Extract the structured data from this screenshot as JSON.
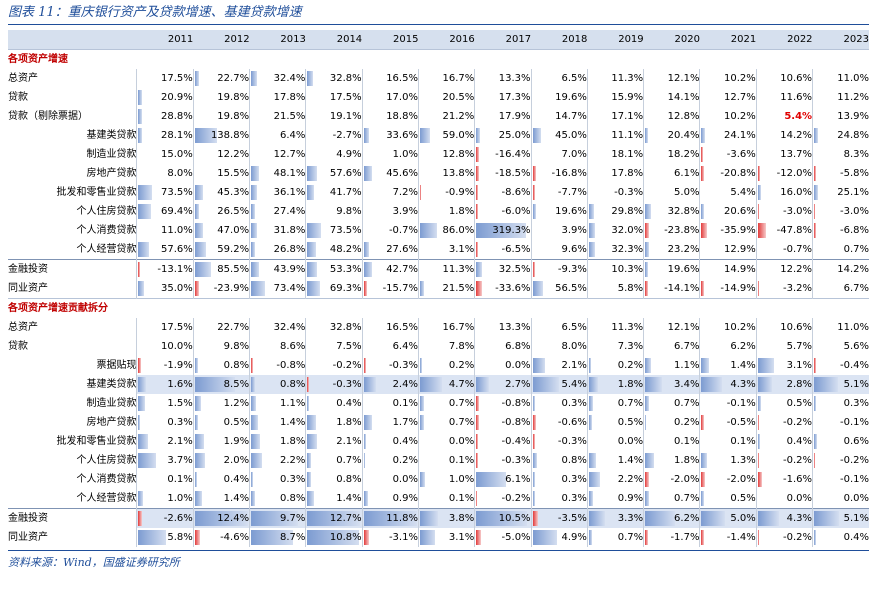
{
  "title": "图表 11：重庆银行资产及贷款增速、基建贷款增速",
  "source": "资料来源：Wind，国盛证券研究所",
  "years": [
    "2011",
    "2012",
    "2013",
    "2014",
    "2015",
    "2016",
    "2017",
    "2018",
    "2019",
    "2020",
    "2021",
    "2022",
    "2023"
  ],
  "sections": [
    {
      "heading": "各项资产增速",
      "rows": [
        {
          "label": "总资产",
          "indent": false,
          "band": false,
          "sep": false,
          "values": [
            "17.5%",
            "22.7%",
            "32.4%",
            "32.8%",
            "16.5%",
            "16.7%",
            "13.3%",
            "6.5%",
            "11.3%",
            "12.1%",
            "10.2%",
            "10.6%",
            "11.0%"
          ],
          "bars": [
            0,
            4,
            6,
            6,
            0,
            0,
            0,
            0,
            0,
            0,
            0,
            0,
            0
          ]
        },
        {
          "label": "贷款",
          "indent": false,
          "band": false,
          "sep": false,
          "values": [
            "20.9%",
            "19.8%",
            "17.8%",
            "17.5%",
            "17.0%",
            "20.5%",
            "17.3%",
            "19.6%",
            "15.9%",
            "14.1%",
            "12.7%",
            "11.6%",
            "11.2%"
          ],
          "bars": [
            4,
            0,
            0,
            0,
            0,
            0,
            0,
            0,
            0,
            0,
            0,
            0,
            0
          ],
          "red": []
        },
        {
          "label": "贷款（剔除票据）",
          "indent": false,
          "band": false,
          "sep": false,
          "values": [
            "28.8%",
            "19.8%",
            "21.5%",
            "19.1%",
            "18.8%",
            "21.2%",
            "17.9%",
            "14.7%",
            "17.1%",
            "12.8%",
            "10.2%",
            "5.4%",
            "13.9%"
          ],
          "bars": [
            4,
            0,
            0,
            0,
            0,
            0,
            0,
            0,
            0,
            0,
            0,
            0,
            0
          ],
          "red": [
            11
          ],
          "highlight": [
            11
          ]
        },
        {
          "label": "基建类贷款",
          "indent": true,
          "band": false,
          "sep": false,
          "values": [
            "28.1%",
            "138.8%",
            "6.4%",
            "-2.7%",
            "33.6%",
            "59.0%",
            "25.0%",
            "45.0%",
            "11.1%",
            "20.4%",
            "24.1%",
            "14.2%",
            "24.8%"
          ],
          "bars": [
            4,
            22,
            0,
            0,
            5,
            10,
            4,
            8,
            0,
            3,
            4,
            0,
            4
          ]
        },
        {
          "label": "制造业贷款",
          "indent": true,
          "band": false,
          "sep": false,
          "values": [
            "15.0%",
            "12.2%",
            "12.7%",
            "4.9%",
            "1.0%",
            "12.8%",
            "-16.4%",
            "7.0%",
            "18.1%",
            "18.2%",
            "-3.6%",
            "13.7%",
            "8.3%"
          ],
          "bars": [
            0,
            0,
            0,
            0,
            0,
            0,
            -3,
            0,
            0,
            0,
            -2,
            0,
            0
          ]
        },
        {
          "label": "房地产贷款",
          "indent": true,
          "band": false,
          "sep": false,
          "values": [
            "8.0%",
            "15.5%",
            "48.1%",
            "57.6%",
            "45.6%",
            "13.8%",
            "-18.5%",
            "-16.8%",
            "17.8%",
            "6.1%",
            "-20.8%",
            "-12.0%",
            "-5.8%"
          ],
          "bars": [
            0,
            0,
            8,
            10,
            8,
            0,
            -3,
            -3,
            0,
            0,
            -3,
            -2,
            -2
          ]
        },
        {
          "label": "批发和零售业贷款",
          "indent": true,
          "band": false,
          "sep": false,
          "values": [
            "73.5%",
            "45.3%",
            "36.1%",
            "41.7%",
            "7.2%",
            "-0.9%",
            "-8.6%",
            "-7.7%",
            "-0.3%",
            "5.0%",
            "5.4%",
            "16.0%",
            "25.1%"
          ],
          "bars": [
            14,
            8,
            6,
            7,
            0,
            -1,
            -2,
            -2,
            0,
            0,
            0,
            3,
            4
          ]
        },
        {
          "label": "个人住房贷款",
          "indent": true,
          "band": false,
          "sep": false,
          "values": [
            "69.4%",
            "26.5%",
            "27.4%",
            "9.8%",
            "3.9%",
            "1.8%",
            "-6.0%",
            "19.6%",
            "29.8%",
            "32.8%",
            "20.6%",
            "-3.0%",
            "-3.0%"
          ],
          "bars": [
            13,
            4,
            4,
            0,
            0,
            0,
            -2,
            3,
            5,
            6,
            3,
            -1,
            -1
          ]
        },
        {
          "label": "个人消费贷款",
          "indent": true,
          "band": false,
          "sep": false,
          "values": [
            "11.0%",
            "47.0%",
            "31.8%",
            "73.5%",
            "-0.7%",
            "86.0%",
            "319.3%",
            "3.9%",
            "32.0%",
            "-23.8%",
            "-35.9%",
            "-47.8%",
            "-6.8%"
          ],
          "bars": [
            0,
            8,
            6,
            14,
            0,
            17,
            50,
            0,
            6,
            -4,
            -6,
            -8,
            -2
          ]
        },
        {
          "label": "个人经营贷款",
          "indent": true,
          "band": false,
          "sep": false,
          "values": [
            "57.6%",
            "59.2%",
            "26.8%",
            "48.2%",
            "27.6%",
            "3.1%",
            "-6.5%",
            "9.6%",
            "32.3%",
            "23.2%",
            "12.9%",
            "-0.7%",
            "0.7%"
          ],
          "bars": [
            11,
            11,
            4,
            9,
            5,
            0,
            -2,
            0,
            6,
            4,
            0,
            0,
            0
          ]
        },
        {
          "label": "金融投资",
          "indent": false,
          "band": false,
          "sep": true,
          "values": [
            "-13.1%",
            "85.5%",
            "43.9%",
            "53.3%",
            "42.7%",
            "11.3%",
            "32.5%",
            "-9.3%",
            "10.3%",
            "19.6%",
            "14.9%",
            "12.2%",
            "14.2%"
          ],
          "bars": [
            -2,
            16,
            8,
            10,
            8,
            0,
            6,
            -2,
            0,
            3,
            0,
            0,
            0
          ]
        },
        {
          "label": "同业资产",
          "indent": false,
          "band": false,
          "sep": false,
          "values": [
            "35.0%",
            "-23.9%",
            "73.4%",
            "69.3%",
            "-15.7%",
            "21.5%",
            "-33.6%",
            "56.5%",
            "5.8%",
            "-14.1%",
            "-14.9%",
            "-3.2%",
            "6.7%"
          ],
          "bars": [
            6,
            -4,
            14,
            13,
            -3,
            4,
            -6,
            10,
            0,
            -3,
            -3,
            -1,
            0
          ]
        }
      ]
    },
    {
      "heading": "各项资产增速贡献拆分",
      "rows": [
        {
          "label": "总资产",
          "indent": false,
          "band": false,
          "sep": false,
          "values": [
            "17.5%",
            "22.7%",
            "32.4%",
            "32.8%",
            "16.5%",
            "16.7%",
            "13.3%",
            "6.5%",
            "11.3%",
            "12.1%",
            "10.2%",
            "10.6%",
            "11.0%"
          ],
          "bars": [
            0,
            0,
            0,
            0,
            0,
            0,
            0,
            0,
            0,
            0,
            0,
            0,
            0
          ]
        },
        {
          "label": "贷款",
          "indent": false,
          "band": false,
          "sep": false,
          "values": [
            "10.0%",
            "9.8%",
            "8.6%",
            "7.5%",
            "6.4%",
            "7.8%",
            "6.8%",
            "8.0%",
            "7.3%",
            "6.7%",
            "6.2%",
            "5.7%",
            "5.6%"
          ],
          "bars": [
            0,
            0,
            0,
            0,
            0,
            0,
            0,
            0,
            0,
            0,
            0,
            0,
            0
          ]
        },
        {
          "label": "票据贴现",
          "indent": true,
          "band": false,
          "sep": false,
          "values": [
            "-1.9%",
            "0.8%",
            "-0.8%",
            "-0.2%",
            "-0.3%",
            "0.2%",
            "0.0%",
            "2.1%",
            "0.2%",
            "1.1%",
            "1.4%",
            "3.1%",
            "-0.4%"
          ],
          "bars": [
            -3,
            3,
            -2,
            0,
            -2,
            2,
            0,
            12,
            2,
            6,
            8,
            16,
            -2
          ]
        },
        {
          "label": "基建类贷款",
          "indent": true,
          "band": true,
          "sep": false,
          "values": [
            "1.6%",
            "8.5%",
            "0.8%",
            "-0.3%",
            "2.4%",
            "4.7%",
            "2.7%",
            "5.4%",
            "1.8%",
            "3.4%",
            "4.3%",
            "2.8%",
            "5.1%"
          ],
          "bars": [
            8,
            40,
            4,
            -2,
            12,
            22,
            13,
            26,
            9,
            17,
            21,
            14,
            24
          ]
        },
        {
          "label": "制造业贷款",
          "indent": true,
          "band": false,
          "sep": false,
          "values": [
            "1.5%",
            "1.2%",
            "1.1%",
            "0.4%",
            "0.1%",
            "0.7%",
            "-0.8%",
            "0.3%",
            "0.7%",
            "0.7%",
            "-0.1%",
            "0.5%",
            "0.3%"
          ],
          "bars": [
            7,
            6,
            5,
            2,
            0,
            4,
            -3,
            2,
            4,
            4,
            0,
            3,
            2
          ]
        },
        {
          "label": "房地产贷款",
          "indent": true,
          "band": false,
          "sep": false,
          "values": [
            "0.3%",
            "0.5%",
            "1.4%",
            "1.8%",
            "1.7%",
            "0.7%",
            "-0.8%",
            "-0.6%",
            "0.5%",
            "0.2%",
            "-0.5%",
            "-0.2%",
            "-0.1%"
          ],
          "bars": [
            2,
            3,
            7,
            9,
            8,
            4,
            -3,
            -3,
            3,
            1,
            -3,
            -1,
            0
          ]
        },
        {
          "label": "批发和零售业贷款",
          "indent": true,
          "band": false,
          "sep": false,
          "values": [
            "2.1%",
            "1.9%",
            "1.8%",
            "2.1%",
            "0.4%",
            "0.0%",
            "-0.4%",
            "-0.3%",
            "0.0%",
            "0.1%",
            "0.1%",
            "0.4%",
            "0.6%"
          ],
          "bars": [
            10,
            9,
            9,
            10,
            2,
            0,
            -2,
            -2,
            0,
            0,
            0,
            2,
            3
          ]
        },
        {
          "label": "个人住房贷款",
          "indent": true,
          "band": false,
          "sep": false,
          "values": [
            "3.7%",
            "2.0%",
            "2.2%",
            "0.7%",
            "0.2%",
            "0.1%",
            "-0.3%",
            "0.8%",
            "1.4%",
            "1.8%",
            "1.3%",
            "-0.2%",
            "-0.2%"
          ],
          "bars": [
            18,
            10,
            11,
            4,
            1,
            0,
            -2,
            4,
            7,
            9,
            6,
            -1,
            -1
          ]
        },
        {
          "label": "个人消费贷款",
          "indent": true,
          "band": false,
          "sep": false,
          "values": [
            "0.1%",
            "0.4%",
            "0.3%",
            "0.8%",
            "0.0%",
            "1.0%",
            "6.1%",
            "0.3%",
            "2.2%",
            "-2.0%",
            "-2.0%",
            "-1.6%",
            "-0.1%"
          ],
          "bars": [
            0,
            2,
            2,
            4,
            0,
            5,
            30,
            2,
            11,
            -4,
            -4,
            -4,
            0
          ]
        },
        {
          "label": "个人经营贷款",
          "indent": true,
          "band": false,
          "sep": false,
          "values": [
            "1.0%",
            "1.4%",
            "0.8%",
            "1.4%",
            "0.9%",
            "0.1%",
            "-0.2%",
            "0.3%",
            "0.9%",
            "0.7%",
            "0.5%",
            "0.0%",
            "0.0%"
          ],
          "bars": [
            5,
            7,
            4,
            7,
            4,
            0,
            -1,
            2,
            4,
            4,
            3,
            0,
            0
          ]
        },
        {
          "label": "金融投资",
          "indent": false,
          "band": true,
          "sep": true,
          "values": [
            "-2.6%",
            "12.4%",
            "9.7%",
            "12.7%",
            "11.8%",
            "3.8%",
            "10.5%",
            "-3.5%",
            "3.3%",
            "6.2%",
            "5.0%",
            "4.3%",
            "5.1%"
          ],
          "bars": [
            -4,
            60,
            47,
            62,
            57,
            18,
            51,
            -5,
            16,
            30,
            24,
            21,
            25
          ]
        },
        {
          "label": "同业资产",
          "indent": false,
          "band": false,
          "sep": false,
          "values": [
            "5.8%",
            "-4.6%",
            "8.7%",
            "10.8%",
            "-3.1%",
            "3.1%",
            "-5.0%",
            "4.9%",
            "0.7%",
            "-1.7%",
            "-1.4%",
            "-0.2%",
            "0.4%"
          ],
          "bars": [
            28,
            -5,
            42,
            52,
            -5,
            15,
            -5,
            24,
            3,
            -3,
            -3,
            -1,
            2
          ]
        }
      ]
    }
  ]
}
